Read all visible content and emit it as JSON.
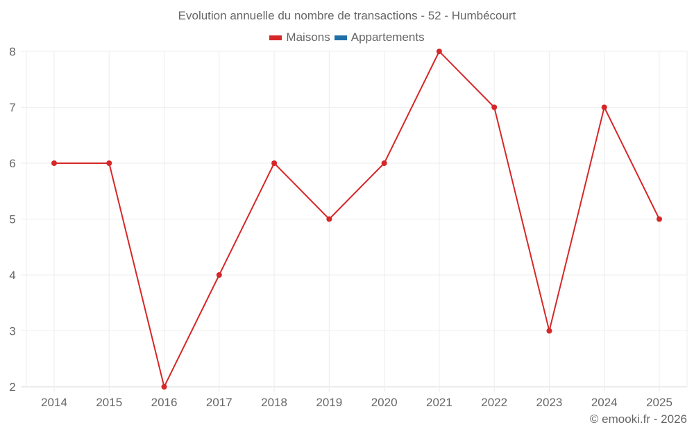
{
  "chart_data": {
    "type": "line",
    "title": "Evolution annuelle du nombre de transactions - 52 - Humbécourt",
    "xlabel": "",
    "ylabel": "",
    "categories": [
      "2014",
      "2015",
      "2016",
      "2017",
      "2018",
      "2019",
      "2020",
      "2021",
      "2022",
      "2023",
      "2024",
      "2025"
    ],
    "series": [
      {
        "name": "Maisons",
        "color": "#d62728",
        "values": [
          6,
          6,
          2,
          4,
          6,
          5,
          6,
          8,
          7,
          3,
          7,
          5
        ]
      },
      {
        "name": "Appartements",
        "color": "#1f6fa8",
        "values": []
      }
    ],
    "ylim": [
      2,
      8
    ],
    "yticks": [
      2,
      3,
      4,
      5,
      6,
      7,
      8
    ],
    "grid": true,
    "legend_position": "top"
  },
  "header": {
    "title": "Evolution annuelle du nombre de transactions - 52 - Humbécourt"
  },
  "legend": {
    "items": [
      {
        "label": "Maisons",
        "color": "#d62728"
      },
      {
        "label": "Appartements",
        "color": "#1f6fa8"
      }
    ]
  },
  "footer": {
    "credit": "© emooki.fr - 2026"
  }
}
